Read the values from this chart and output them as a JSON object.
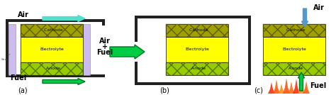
{
  "bg_color": "#ffffff",
  "cathode_color": "#a0a000",
  "electrolyte_color": "#ffff00",
  "anode_color": "#99cc00",
  "anode_hatch_color": "#557700",
  "cathode_hatch_color": "#606000",
  "seal_color": "#ccbbee",
  "wall_color": "#222222",
  "arrow_green_color": "#00cc44",
  "arrow_cyan_color": "#55ddcc",
  "arrow_blue_color": "#5599cc",
  "text_color": "#000000",
  "label_a": "(a)",
  "label_b": "(b)",
  "label_c": "(c)",
  "cell_text_fontsize": 4.5
}
